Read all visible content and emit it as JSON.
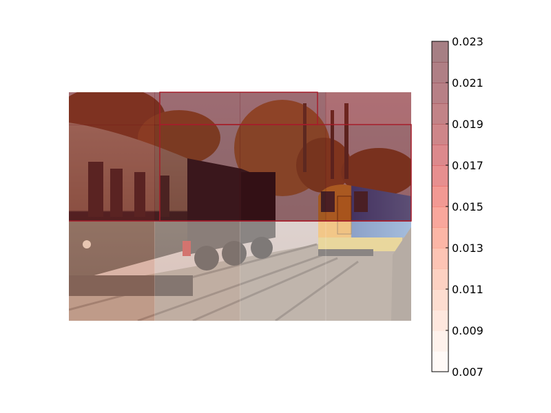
{
  "chart_data": {
    "type": "heatmap",
    "title": "",
    "background": "photo of a steam locomotive pulling a coach beside a modern blue/orange diesel train on parallel tracks, autumn trees behind",
    "colormap": "Reds",
    "overlay_alpha": 0.5,
    "colorbar": {
      "vmin": 0.007,
      "vmax": 0.023,
      "levels": 16,
      "ticks": [
        0.007,
        0.009,
        0.011,
        0.013,
        0.015,
        0.017,
        0.019,
        0.021,
        0.023
      ],
      "tick_labels": [
        "0.007",
        "0.009",
        "0.011",
        "0.013",
        "0.015",
        "0.017",
        "0.019",
        "0.021",
        "0.023"
      ],
      "colors": [
        "#fff5f0",
        "#fee5d9",
        "#fdd0bd",
        "#fcbba1",
        "#fca486",
        "#fc8a6a",
        "#f96e4e",
        "#f4503a",
        "#e63328",
        "#cf1f1f",
        "#b91419",
        "#9e0d14",
        "#85070f",
        "#6f020d",
        "#5f000c",
        "#4d000a"
      ]
    },
    "grid_rows": 3,
    "grid_cols": 4,
    "cells": [
      [
        0.0205,
        0.0215,
        0.0218,
        0.019
      ],
      [
        0.02,
        0.022,
        0.0225,
        0.0215
      ],
      [
        0.011,
        0.008,
        0.0075,
        0.007
      ]
    ],
    "boxes": [
      {
        "label": "",
        "region": "upper-middle",
        "value": 0.023
      },
      {
        "label": "",
        "region": "center",
        "value": 0.022
      }
    ]
  }
}
